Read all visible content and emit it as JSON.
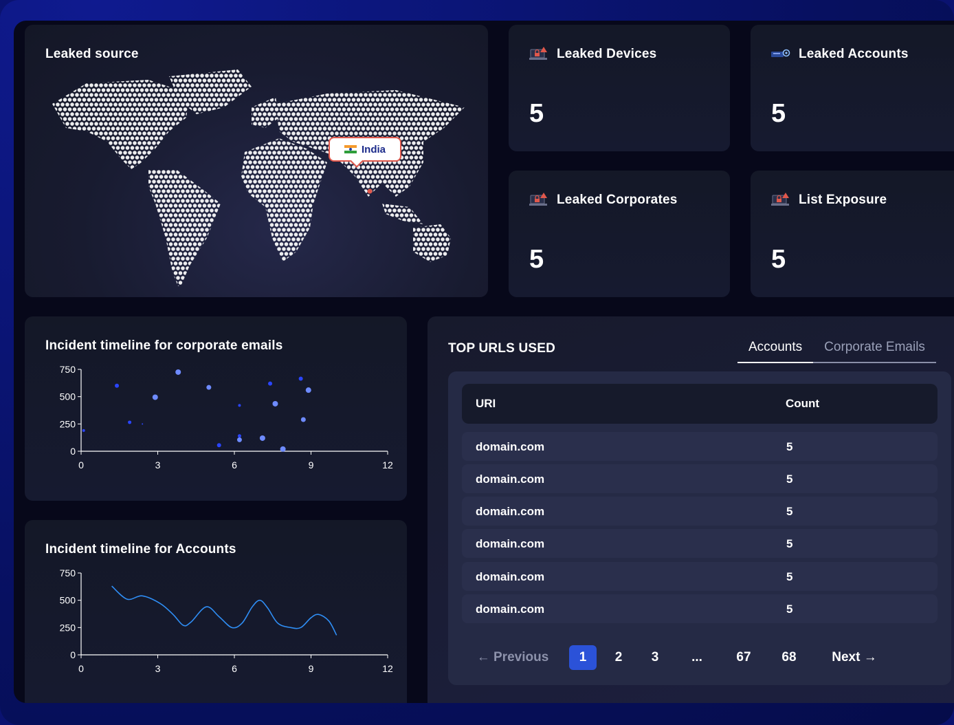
{
  "map_card": {
    "title": "Leaked source",
    "highlight_country": "India"
  },
  "stats": [
    {
      "label": "Leaked Devices",
      "value": "5",
      "icon": "laptop-alert-icon"
    },
    {
      "label": "Leaked Accounts",
      "value": "5",
      "icon": "key-card-icon"
    },
    {
      "label": "Leaked Corporates",
      "value": "5",
      "icon": "laptop-alert-icon"
    },
    {
      "label": "List Exposure",
      "value": "5",
      "icon": "laptop-alert-icon"
    }
  ],
  "chart_data": [
    {
      "type": "scatter",
      "title": "Incident timeline for corporate emails",
      "xlabel": "",
      "ylabel": "",
      "xlim": [
        0,
        12
      ],
      "ylim": [
        0,
        750
      ],
      "xticks": [
        0,
        3,
        6,
        9,
        12
      ],
      "yticks": [
        0,
        250,
        500,
        750
      ],
      "grid": false,
      "points": [
        {
          "x": 0.1,
          "y": 190,
          "size": 2
        },
        {
          "x": 1.4,
          "y": 600,
          "size": 3
        },
        {
          "x": 1.9,
          "y": 265,
          "size": 2.5
        },
        {
          "x": 2.4,
          "y": 250,
          "size": 1
        },
        {
          "x": 2.9,
          "y": 495,
          "size": 4
        },
        {
          "x": 3.8,
          "y": 725,
          "size": 4
        },
        {
          "x": 5.0,
          "y": 585,
          "size": 3.5
        },
        {
          "x": 5.4,
          "y": 55,
          "size": 3
        },
        {
          "x": 6.2,
          "y": 140,
          "size": 2.5
        },
        {
          "x": 6.2,
          "y": 105,
          "size": 3.5
        },
        {
          "x": 6.2,
          "y": 420,
          "size": 2
        },
        {
          "x": 7.1,
          "y": 120,
          "size": 4
        },
        {
          "x": 7.4,
          "y": 620,
          "size": 3
        },
        {
          "x": 7.6,
          "y": 435,
          "size": 4
        },
        {
          "x": 7.9,
          "y": 20,
          "size": 4
        },
        {
          "x": 8.6,
          "y": 665,
          "size": 3
        },
        {
          "x": 8.7,
          "y": 290,
          "size": 3.5
        },
        {
          "x": 8.9,
          "y": 560,
          "size": 4
        }
      ]
    },
    {
      "type": "line",
      "title": "Incident timeline for Accounts",
      "xlabel": "",
      "ylabel": "",
      "xlim": [
        0,
        12
      ],
      "ylim": [
        0,
        750
      ],
      "xticks": [
        0,
        3,
        6,
        9,
        12
      ],
      "yticks": [
        0,
        250,
        500,
        750
      ],
      "grid": false,
      "x": [
        1.2,
        1.8,
        2.4,
        3.1,
        3.6,
        4.0,
        4.3,
        4.9,
        5.4,
        5.9,
        6.3,
        6.7,
        7.0,
        7.3,
        7.7,
        8.2,
        8.6,
        9.0,
        9.3,
        9.7,
        10.0
      ],
      "y": [
        630,
        510,
        540,
        470,
        370,
        270,
        300,
        440,
        350,
        250,
        290,
        440,
        500,
        430,
        290,
        250,
        250,
        340,
        370,
        310,
        180
      ]
    }
  ],
  "table_card": {
    "title": "TOP URLS USED",
    "tabs": [
      "Accounts",
      "Corporate Emails"
    ],
    "active_tab": "Accounts",
    "columns": [
      "URI",
      "Count"
    ],
    "rows": [
      {
        "uri": "domain.com",
        "count": "5"
      },
      {
        "uri": "domain.com",
        "count": "5"
      },
      {
        "uri": "domain.com",
        "count": "5"
      },
      {
        "uri": "domain.com",
        "count": "5"
      },
      {
        "uri": "domain.com",
        "count": "5"
      },
      {
        "uri": "domain.com",
        "count": "5"
      }
    ],
    "pagination": {
      "previous": "Previous",
      "pages": [
        "1",
        "2",
        "3",
        "...",
        "67",
        "68"
      ],
      "current": "1",
      "next": "Next"
    }
  },
  "colors": {
    "accent": "#2b52d8",
    "scatter_dark": "#2a45ff",
    "scatter_light": "#6e8bff",
    "line": "#2f8ef5",
    "alert_icon": "#e0574b"
  }
}
